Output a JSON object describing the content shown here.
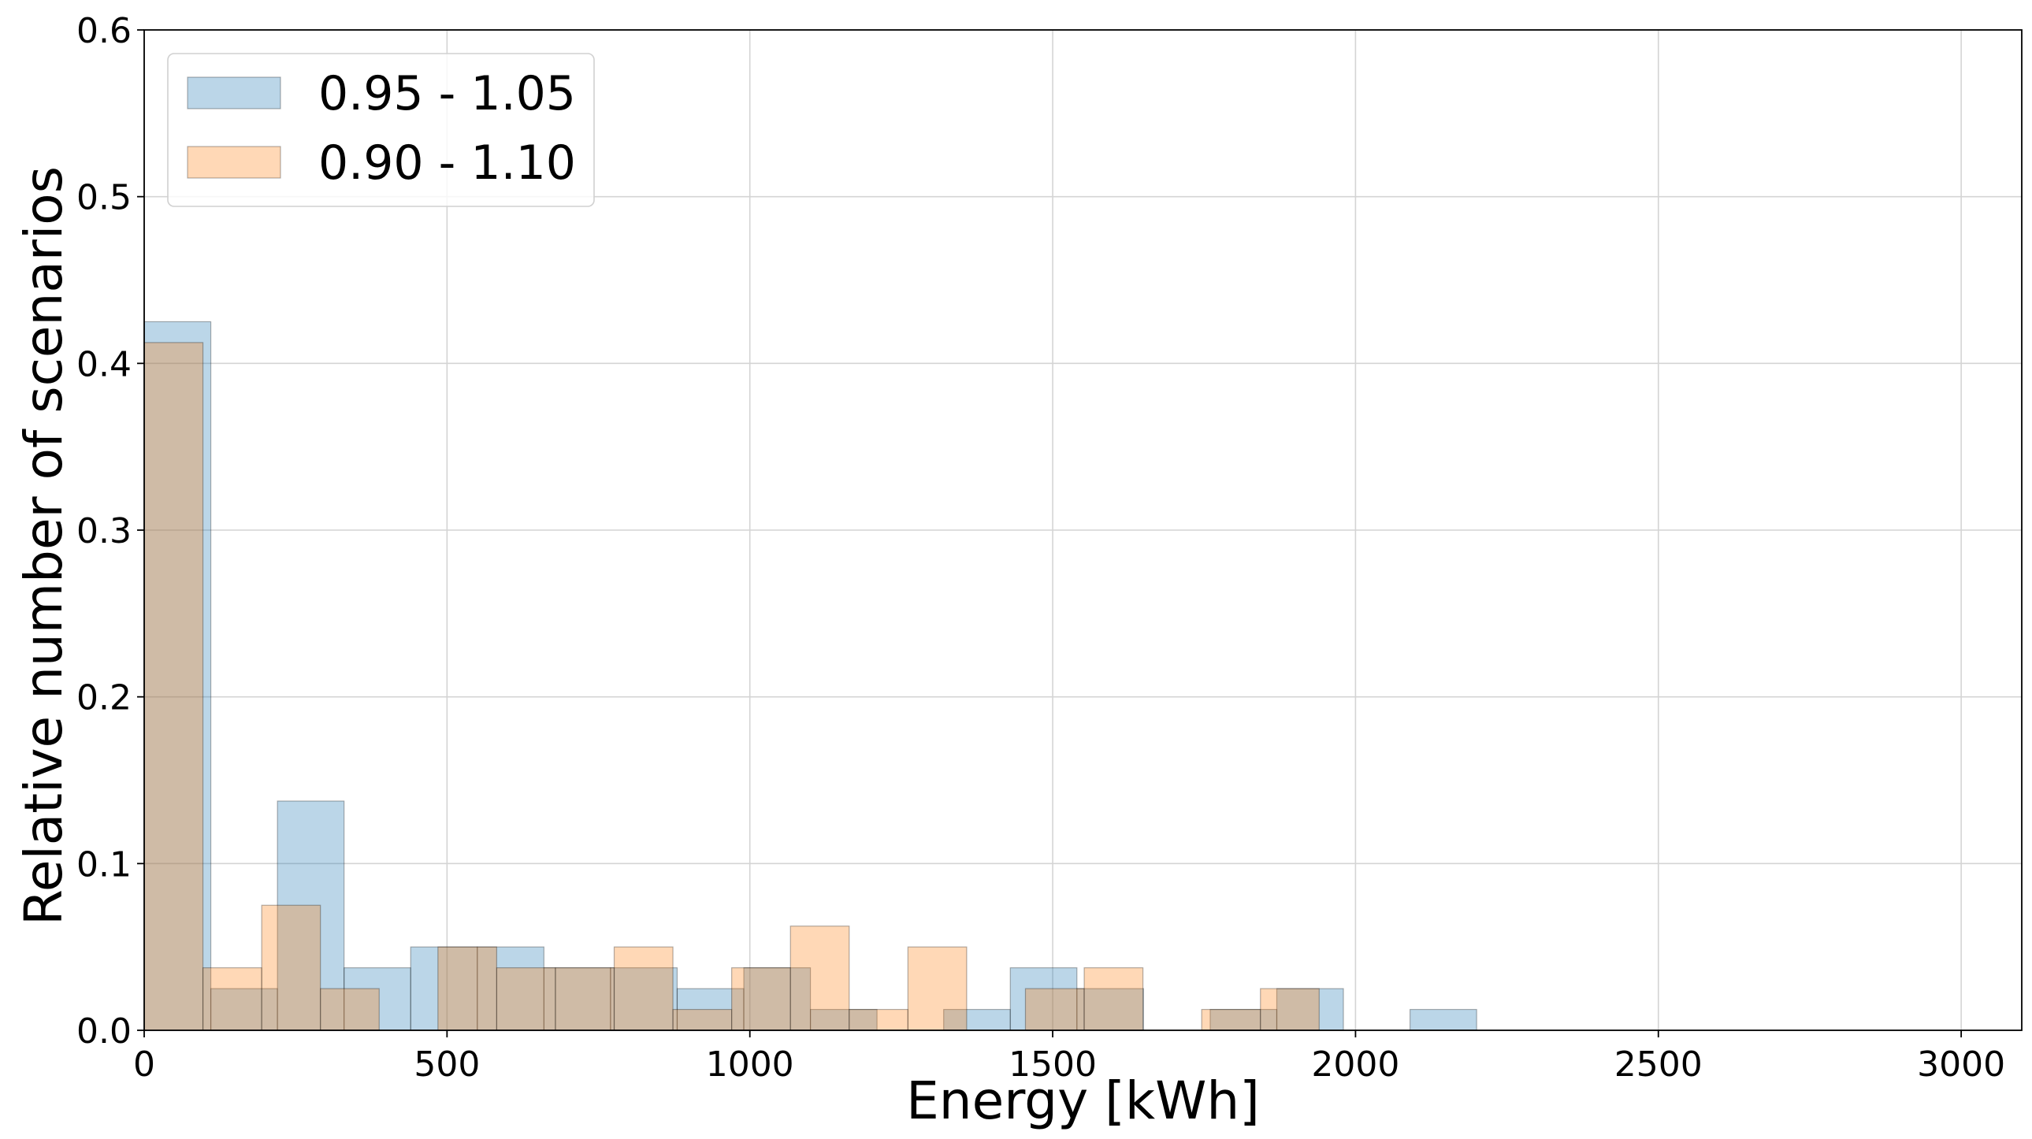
{
  "chart_data": {
    "type": "bar",
    "subtype": "overlapping-histogram",
    "title": "",
    "xlabel": "Energy [kWh]",
    "ylabel": "Relative number of scenarios",
    "xlim": [
      0,
      3100
    ],
    "ylim": [
      0,
      0.6
    ],
    "x_ticks": [
      0,
      500,
      1000,
      1500,
      2000,
      2500,
      3000
    ],
    "x_tick_labels": [
      "0",
      "500",
      "1000",
      "1500",
      "2000",
      "2500",
      "3000"
    ],
    "y_ticks": [
      0.0,
      0.1,
      0.2,
      0.3,
      0.4,
      0.5,
      0.6
    ],
    "y_tick_labels": [
      "0.0",
      "0.1",
      "0.2",
      "0.3",
      "0.4",
      "0.5",
      "0.6"
    ],
    "grid": true,
    "legend_position": "top-left",
    "series": [
      {
        "name": "0.95 - 1.05",
        "color": "#1f77b4",
        "alpha": 0.3,
        "bins": [
          {
            "x0": 0,
            "x1": 110,
            "value": 0.425
          },
          {
            "x0": 110,
            "x1": 220,
            "value": 0.025
          },
          {
            "x0": 220,
            "x1": 330,
            "value": 0.1375
          },
          {
            "x0": 330,
            "x1": 440,
            "value": 0.0375
          },
          {
            "x0": 440,
            "x1": 550,
            "value": 0.05
          },
          {
            "x0": 550,
            "x1": 660,
            "value": 0.05
          },
          {
            "x0": 660,
            "x1": 770,
            "value": 0.0375
          },
          {
            "x0": 770,
            "x1": 880,
            "value": 0.0375
          },
          {
            "x0": 880,
            "x1": 990,
            "value": 0.025
          },
          {
            "x0": 990,
            "x1": 1100,
            "value": 0.0375
          },
          {
            "x0": 1100,
            "x1": 1210,
            "value": 0.0125
          },
          {
            "x0": 1210,
            "x1": 1320,
            "value": 0.0
          },
          {
            "x0": 1320,
            "x1": 1430,
            "value": 0.0125
          },
          {
            "x0": 1430,
            "x1": 1540,
            "value": 0.0375
          },
          {
            "x0": 1540,
            "x1": 1650,
            "value": 0.025
          },
          {
            "x0": 1650,
            "x1": 1760,
            "value": 0.0
          },
          {
            "x0": 1760,
            "x1": 1870,
            "value": 0.0125
          },
          {
            "x0": 1870,
            "x1": 1980,
            "value": 0.025
          },
          {
            "x0": 1980,
            "x1": 2090,
            "value": 0.0
          },
          {
            "x0": 2090,
            "x1": 2200,
            "value": 0.0125
          }
        ]
      },
      {
        "name": "0.90 - 1.10",
        "color": "#ff7f0e",
        "alpha": 0.3,
        "bins": [
          {
            "x0": 0,
            "x1": 97,
            "value": 0.4125
          },
          {
            "x0": 97,
            "x1": 194,
            "value": 0.0375
          },
          {
            "x0": 194,
            "x1": 291,
            "value": 0.075
          },
          {
            "x0": 291,
            "x1": 388,
            "value": 0.025
          },
          {
            "x0": 388,
            "x1": 485,
            "value": 0.0
          },
          {
            "x0": 485,
            "x1": 582,
            "value": 0.05
          },
          {
            "x0": 582,
            "x1": 679,
            "value": 0.0375
          },
          {
            "x0": 679,
            "x1": 776,
            "value": 0.0375
          },
          {
            "x0": 776,
            "x1": 873,
            "value": 0.05
          },
          {
            "x0": 873,
            "x1": 970,
            "value": 0.0125
          },
          {
            "x0": 970,
            "x1": 1067,
            "value": 0.0375
          },
          {
            "x0": 1067,
            "x1": 1164,
            "value": 0.0625
          },
          {
            "x0": 1164,
            "x1": 1261,
            "value": 0.0125
          },
          {
            "x0": 1261,
            "x1": 1358,
            "value": 0.05
          },
          {
            "x0": 1358,
            "x1": 1455,
            "value": 0.0
          },
          {
            "x0": 1455,
            "x1": 1552,
            "value": 0.025
          },
          {
            "x0": 1552,
            "x1": 1649,
            "value": 0.0375
          },
          {
            "x0": 1649,
            "x1": 1746,
            "value": 0.0
          },
          {
            "x0": 1746,
            "x1": 1843,
            "value": 0.0125
          },
          {
            "x0": 1843,
            "x1": 1940,
            "value": 0.025
          }
        ]
      }
    ]
  }
}
